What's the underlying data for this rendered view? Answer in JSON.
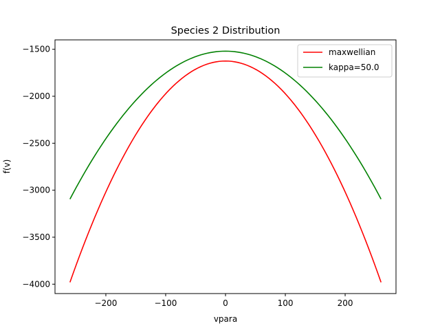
{
  "chart_data": {
    "type": "line",
    "title": "Species 2 Distribution",
    "xlabel": "vpara",
    "ylabel": "f(v)",
    "xlim": [
      -285,
      285
    ],
    "ylim": [
      -4100,
      -1400
    ],
    "x_ticks": [
      -200,
      -100,
      0,
      100,
      200
    ],
    "y_ticks": [
      -1500,
      -2000,
      -2500,
      -3000,
      -3500,
      -4000
    ],
    "x_tick_labels": [
      "−200",
      "−100",
      "0",
      "100",
      "200"
    ],
    "y_tick_labels": [
      "−1500",
      "−2000",
      "−2500",
      "−3000",
      "−3500",
      "−4000"
    ],
    "grid": false,
    "legend_position": "top-right",
    "x_range": [
      -260,
      260
    ],
    "series": [
      {
        "name": "maxwellian",
        "color": "#ff0000",
        "x": [
          -260,
          -200,
          -150,
          -100,
          -50,
          0,
          50,
          100,
          150,
          200,
          260
        ],
        "y": [
          -3980,
          -3060,
          -2420,
          -1980,
          -1710,
          -1625,
          -1710,
          -1980,
          -2420,
          -3060,
          -3980
        ]
      },
      {
        "name": "kappa=50.0",
        "color": "#008000",
        "x": [
          -260,
          -200,
          -150,
          -100,
          -50,
          0,
          50,
          100,
          150,
          200,
          260
        ],
        "y": [
          -3095,
          -2545,
          -2105,
          -1785,
          -1585,
          -1520,
          -1585,
          -1785,
          -2105,
          -2545,
          -3095
        ]
      }
    ]
  }
}
